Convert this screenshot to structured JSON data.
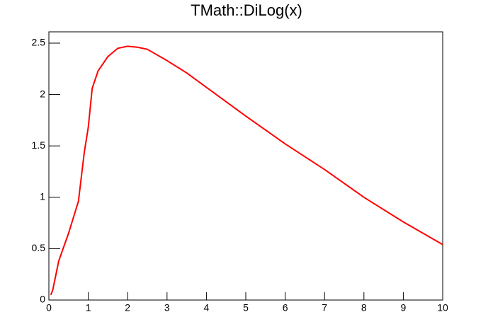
{
  "chart_data": {
    "type": "line",
    "title": "TMath::DiLog(x)",
    "x": [
      0.05,
      0.1,
      0.25,
      0.5,
      0.75,
      0.9,
      1,
      1.1,
      1.25,
      1.5,
      1.75,
      2,
      2.25,
      2.5,
      3,
      3.5,
      4,
      5,
      6,
      7,
      8,
      9,
      10
    ],
    "values": [
      0.05,
      0.1,
      0.38,
      0.65,
      0.96,
      1.44,
      1.68,
      2.06,
      2.23,
      2.37,
      2.45,
      2.47,
      2.46,
      2.44,
      2.33,
      2.21,
      2.07,
      1.79,
      1.52,
      1.27,
      1.0,
      0.76,
      0.54
    ],
    "color": "#ff0000",
    "xlim": [
      0,
      10
    ],
    "xticks": [
      0,
      1,
      2,
      3,
      4,
      5,
      6,
      7,
      8,
      9,
      10
    ],
    "ylim": [
      0,
      2.61
    ],
    "yticks": [
      0,
      0.5,
      1,
      1.5,
      2,
      2.5
    ],
    "grid": false
  }
}
